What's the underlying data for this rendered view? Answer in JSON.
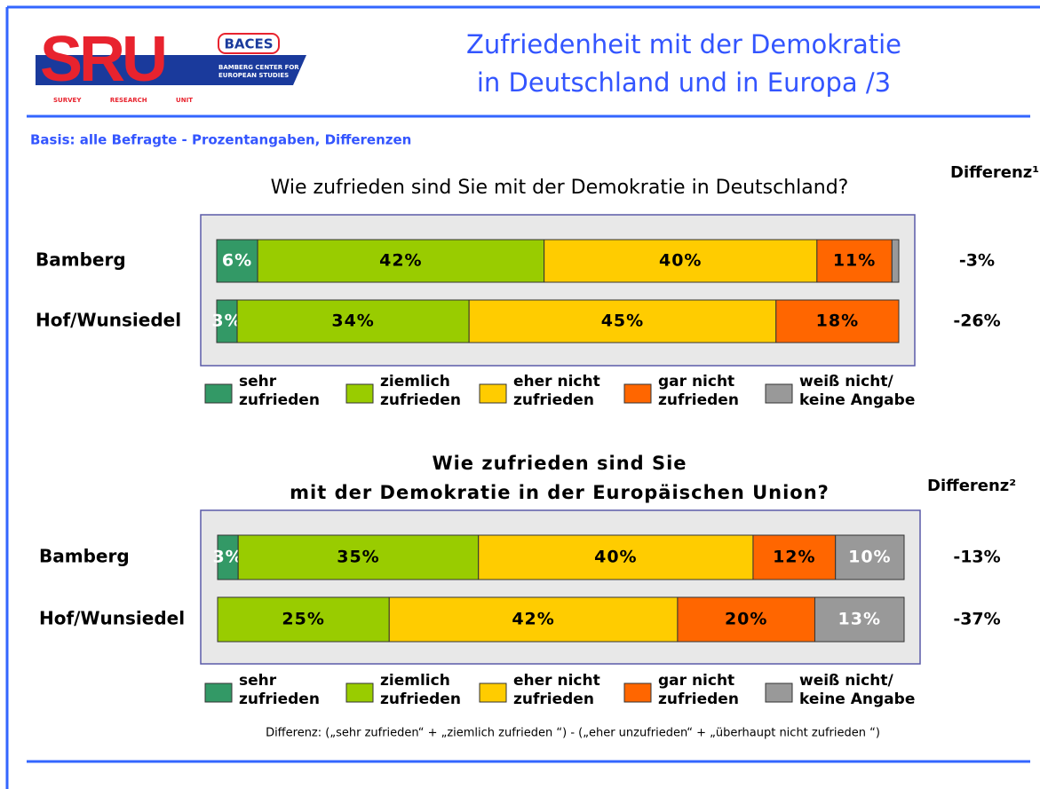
{
  "logo": {
    "main": "SRU",
    "badge": "BACES",
    "center": "BAMBERG CENTER FOR EUROPEAN STUDIES",
    "unit": "SURVEY RESEARCH UNIT"
  },
  "header": {
    "title_line1": "Zufriedenheit mit der Demokratie",
    "title_line2": "in Deutschland und in Europa /3",
    "basis": "Basis: alle Befragte - Prozentangaben, Differenzen"
  },
  "footnote": "Differenz: („sehr zufrieden“ + „ziemlich zufrieden “) - („eher unzufrieden“ + „überhaupt nicht zufrieden “)",
  "chart_data": [
    {
      "type": "stacked-bar-horizontal",
      "title": [
        "Wie zufrieden sind Sie mit der Demokratie in Deutschland?"
      ],
      "difference_header": "Differenz¹",
      "categories": [
        "Bamberg",
        "Hof/Wunsiedel"
      ],
      "differences": [
        "-3%",
        "-26%"
      ],
      "xlim": [
        0,
        100
      ],
      "series": [
        {
          "name": "sehr zufrieden",
          "color": "#339966",
          "values": [
            6,
            3
          ],
          "value_labels": [
            "6%",
            "3%"
          ]
        },
        {
          "name": "ziemlich zufrieden",
          "color": "#99cc00",
          "values": [
            42,
            34
          ],
          "value_labels": [
            "42%",
            "34%"
          ]
        },
        {
          "name": "eher nicht zufrieden",
          "color": "#ffcc00",
          "values": [
            40,
            45
          ],
          "value_labels": [
            "40%",
            "45%"
          ]
        },
        {
          "name": "gar nicht zufrieden",
          "color": "#ff6600",
          "values": [
            11,
            18
          ],
          "value_labels": [
            "11%",
            "18%"
          ]
        },
        {
          "name": "weiß nicht/ keine Angabe",
          "color": "#999999",
          "values": [
            1,
            0
          ],
          "value_labels": [
            null,
            null
          ]
        }
      ]
    },
    {
      "type": "stacked-bar-horizontal",
      "title": [
        "Wie zufrieden sind Sie",
        "mit der Demokratie in der Europäischen Union?"
      ],
      "difference_header": "Differenz²",
      "categories": [
        "Bamberg",
        "Hof/Wunsiedel"
      ],
      "differences": [
        "-13%",
        "-37%"
      ],
      "xlim": [
        0,
        100
      ],
      "series": [
        {
          "name": "sehr zufrieden",
          "color": "#339966",
          "values": [
            3,
            0
          ],
          "value_labels": [
            "3%",
            null
          ]
        },
        {
          "name": "ziemlich zufrieden",
          "color": "#99cc00",
          "values": [
            35,
            25
          ],
          "value_labels": [
            "35%",
            "25%"
          ]
        },
        {
          "name": "eher nicht zufrieden",
          "color": "#ffcc00",
          "values": [
            40,
            42
          ],
          "value_labels": [
            "40%",
            "42%"
          ]
        },
        {
          "name": "gar nicht zufrieden",
          "color": "#ff6600",
          "values": [
            12,
            20
          ],
          "value_labels": [
            "12%",
            "20%"
          ]
        },
        {
          "name": "weiß nicht/ keine Angabe",
          "color": "#999999",
          "values": [
            10,
            13
          ],
          "value_labels": [
            "10%",
            "13%"
          ]
        }
      ]
    }
  ]
}
